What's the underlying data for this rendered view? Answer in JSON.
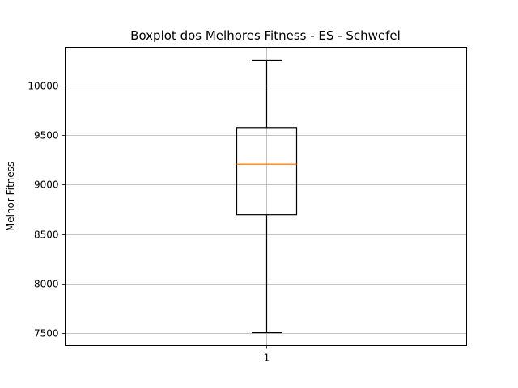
{
  "chart_data": {
    "type": "boxplot",
    "title": "Boxplot dos Melhores Fitness - ES - Schwefel",
    "xlabel": "",
    "ylabel": "Melhor Fitness",
    "categories": [
      "1"
    ],
    "boxes": [
      {
        "category": "1",
        "whisker_low": 7505,
        "q1": 8695,
        "median": 9205,
        "q3": 9575,
        "whisker_high": 10255
      }
    ],
    "ylim": [
      7375,
      10385
    ],
    "yticks": [
      7500,
      8000,
      8500,
      9000,
      9500,
      10000
    ],
    "ytick_labels": [
      "7500",
      "8000",
      "8500",
      "9000",
      "9500",
      "10000"
    ],
    "grid": true,
    "colors": {
      "box": "#000000",
      "median": "#ff7f0e",
      "grid": "#b0b0b0"
    }
  }
}
